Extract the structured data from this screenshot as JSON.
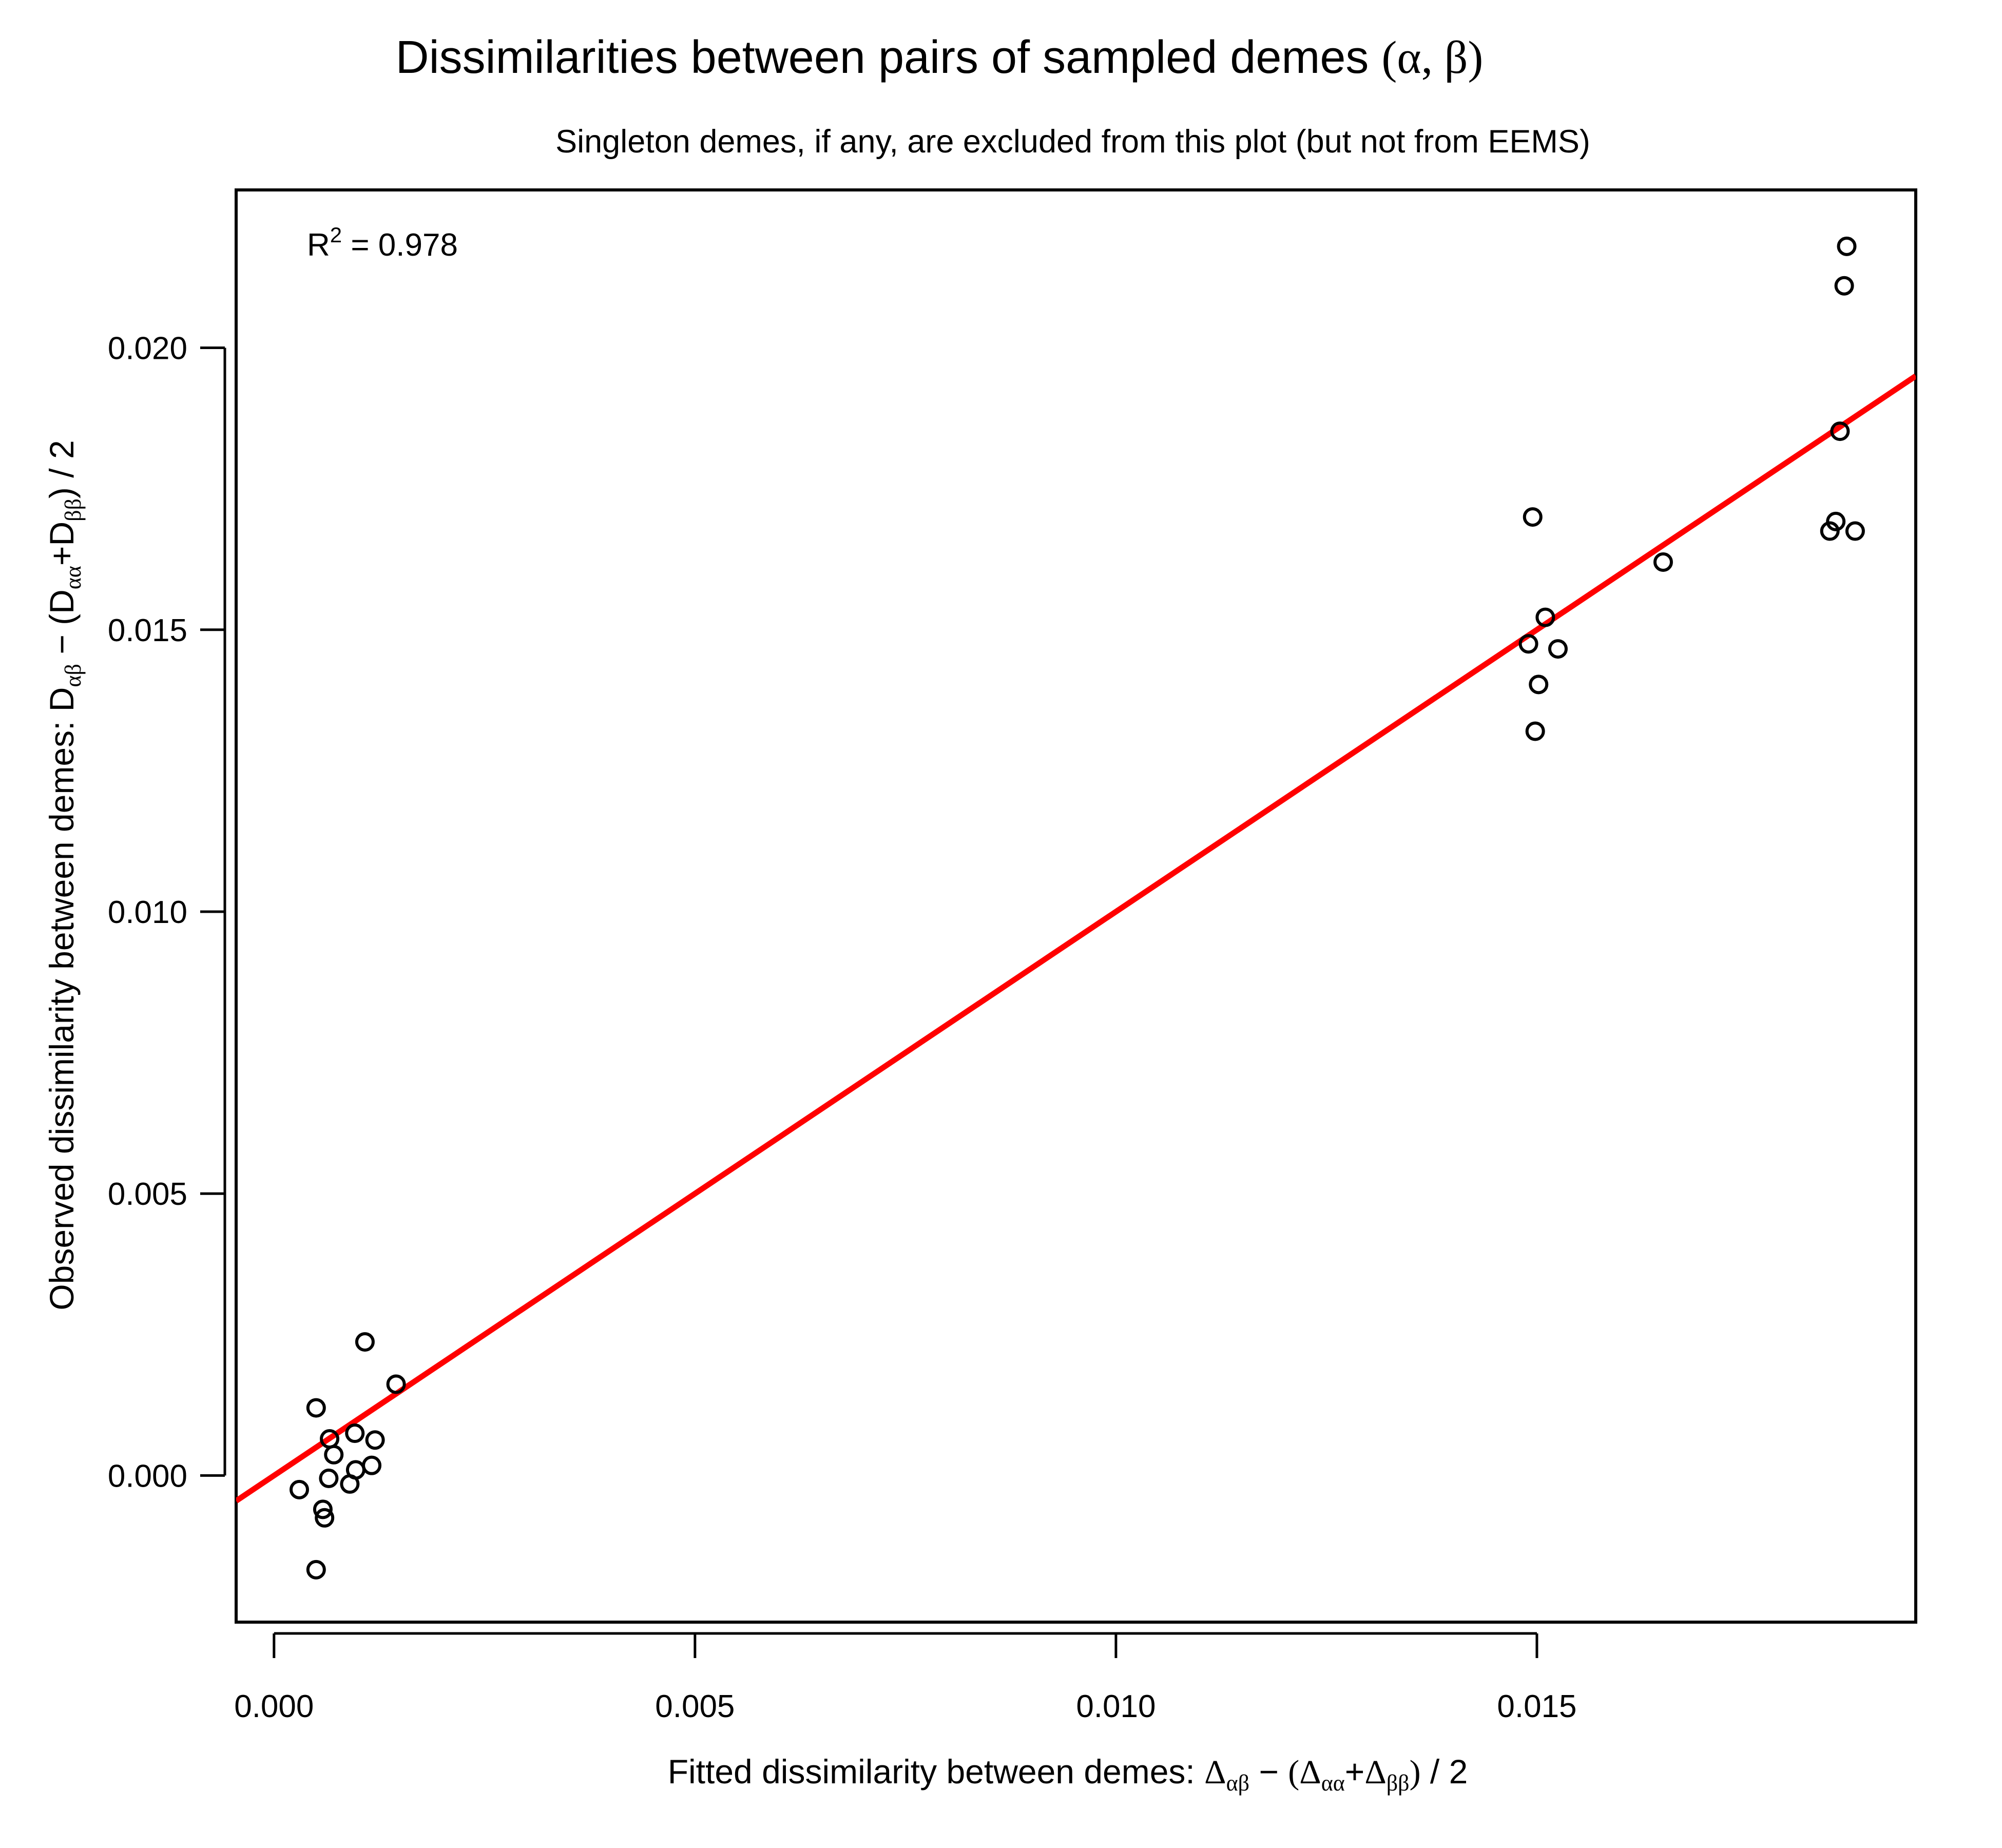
{
  "chart_data": {
    "type": "scatter",
    "title": {
      "text": "Dissimilarities between pairs of sampled demes ",
      "alpha": "α",
      "beta": "β"
    },
    "subtitle": "Singleton demes, if any, are excluded from this plot (but not from EEMS)",
    "xlabel": {
      "text": "Fitted dissimilarity between demes:",
      "delta": "Δ",
      "sub_ab": "αβ",
      "sub_aa": "αα",
      "sub_bb": "ββ",
      "minus": "−",
      "half": "/ 2"
    },
    "ylabel": {
      "text": "Observed dissimilarity between demes:",
      "D": "D",
      "sub_ab": "αβ",
      "sub_aa": "αα",
      "sub_bb": "ββ",
      "minus": "−",
      "half": "/ 2"
    },
    "annotation": {
      "r2_label": "R",
      "r2_exp": "2",
      "r2_text": "= 0.978"
    },
    "xlim": [
      -0.00045,
      0.0195
    ],
    "ylim": [
      -0.0026,
      0.0228
    ],
    "x_ticks": [
      {
        "value": 0.0,
        "label": "0.000"
      },
      {
        "value": 0.005,
        "label": "0.005"
      },
      {
        "value": 0.01,
        "label": "0.010"
      },
      {
        "value": 0.015,
        "label": "0.015"
      }
    ],
    "y_ticks": [
      {
        "value": 0.0,
        "label": "0.000"
      },
      {
        "value": 0.005,
        "label": "0.005"
      },
      {
        "value": 0.01,
        "label": "0.010"
      },
      {
        "value": 0.015,
        "label": "0.015"
      },
      {
        "value": 0.02,
        "label": "0.020"
      }
    ],
    "grid": false,
    "line": {
      "slope": 1.0,
      "intercept": 0.0,
      "color": "#ff0000"
    },
    "points": [
      {
        "x": 0.0003,
        "y": -0.00025
      },
      {
        "x": 0.0005,
        "y": 0.0012
      },
      {
        "x": 0.0005,
        "y": -0.00167
      },
      {
        "x": 0.00058,
        "y": -0.0006
      },
      {
        "x": 0.0006,
        "y": -0.00075
      },
      {
        "x": 0.00065,
        "y": -5e-05
      },
      {
        "x": 0.00066,
        "y": 0.00065
      },
      {
        "x": 0.00071,
        "y": 0.00037
      },
      {
        "x": 0.0009,
        "y": -0.00015
      },
      {
        "x": 0.00096,
        "y": 0.00075
      },
      {
        "x": 0.00097,
        "y": 0.0001
      },
      {
        "x": 0.00108,
        "y": 0.00237
      },
      {
        "x": 0.00116,
        "y": 0.00018
      },
      {
        "x": 0.0012,
        "y": 0.00063
      },
      {
        "x": 0.00145,
        "y": 0.00162
      },
      {
        "x": 0.0149,
        "y": 0.01475
      },
      {
        "x": 0.01495,
        "y": 0.017
      },
      {
        "x": 0.01498,
        "y": 0.0132
      },
      {
        "x": 0.01502,
        "y": 0.01403
      },
      {
        "x": 0.0151,
        "y": 0.01522
      },
      {
        "x": 0.01525,
        "y": 0.01466
      },
      {
        "x": 0.0165,
        "y": 0.0162
      },
      {
        "x": 0.01848,
        "y": 0.01675
      },
      {
        "x": 0.01855,
        "y": 0.01692
      },
      {
        "x": 0.0186,
        "y": 0.01852
      },
      {
        "x": 0.01865,
        "y": 0.0211
      },
      {
        "x": 0.01868,
        "y": 0.0218
      },
      {
        "x": 0.01878,
        "y": 0.01675
      }
    ]
  }
}
